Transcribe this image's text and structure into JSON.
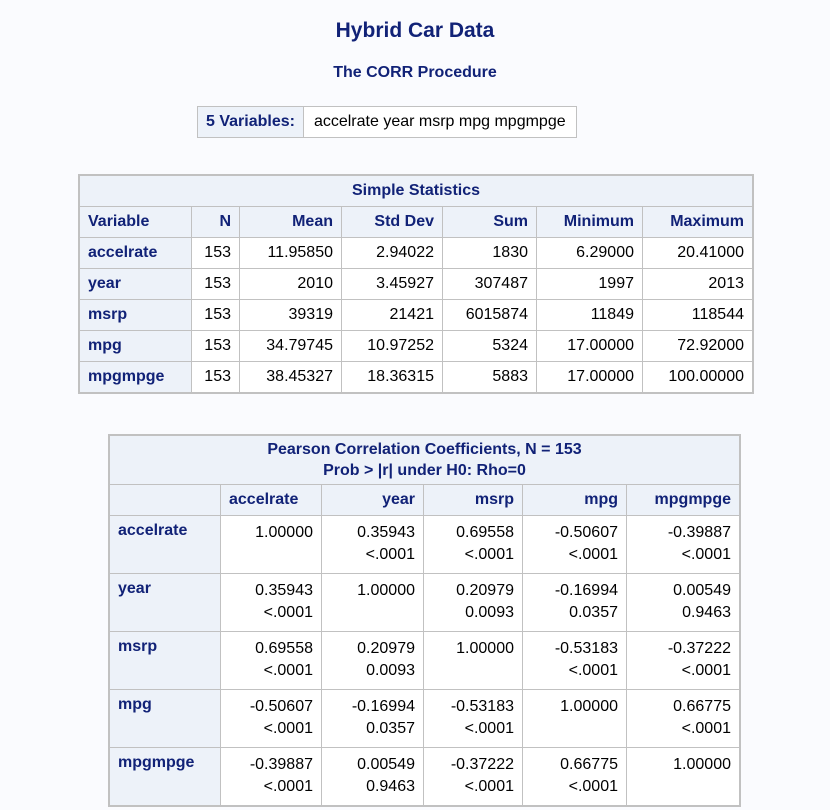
{
  "title": "Hybrid Car Data",
  "subtitle": "The CORR Procedure",
  "variables_box": {
    "label": "5 Variables:",
    "list": "accelrate year msrp mpg mpgmpge"
  },
  "simple_stats": {
    "caption": "Simple Statistics",
    "headers": [
      "Variable",
      "N",
      "Mean",
      "Std Dev",
      "Sum",
      "Minimum",
      "Maximum"
    ],
    "rows": [
      [
        "accelrate",
        "153",
        "11.95850",
        "2.94022",
        "1830",
        "6.29000",
        "20.41000"
      ],
      [
        "year",
        "153",
        "2010",
        "3.45927",
        "307487",
        "1997",
        "2013"
      ],
      [
        "msrp",
        "153",
        "39319",
        "21421",
        "6015874",
        "11849",
        "118544"
      ],
      [
        "mpg",
        "153",
        "34.79745",
        "10.97252",
        "5324",
        "17.00000",
        "72.92000"
      ],
      [
        "mpgmpge",
        "153",
        "38.45327",
        "18.36315",
        "5883",
        "17.00000",
        "100.00000"
      ]
    ]
  },
  "correlation": {
    "caption_line1": "Pearson Correlation Coefficients, N = 153",
    "caption_line2": "Prob > |r| under H0: Rho=0",
    "columns": [
      "accelrate",
      "year",
      "msrp",
      "mpg",
      "mpgmpge"
    ],
    "rows": [
      {
        "label": "accelrate",
        "cells": [
          {
            "r": "1.00000",
            "p": ""
          },
          {
            "r": "0.35943",
            "p": "<.0001"
          },
          {
            "r": "0.69558",
            "p": "<.0001"
          },
          {
            "r": "-0.50607",
            "p": "<.0001"
          },
          {
            "r": "-0.39887",
            "p": "<.0001"
          }
        ]
      },
      {
        "label": "year",
        "cells": [
          {
            "r": "0.35943",
            "p": "<.0001"
          },
          {
            "r": "1.00000",
            "p": ""
          },
          {
            "r": "0.20979",
            "p": "0.0093"
          },
          {
            "r": "-0.16994",
            "p": "0.0357"
          },
          {
            "r": "0.00549",
            "p": "0.9463"
          }
        ]
      },
      {
        "label": "msrp",
        "cells": [
          {
            "r": "0.69558",
            "p": "<.0001"
          },
          {
            "r": "0.20979",
            "p": "0.0093"
          },
          {
            "r": "1.00000",
            "p": ""
          },
          {
            "r": "-0.53183",
            "p": "<.0001"
          },
          {
            "r": "-0.37222",
            "p": "<.0001"
          }
        ]
      },
      {
        "label": "mpg",
        "cells": [
          {
            "r": "-0.50607",
            "p": "<.0001"
          },
          {
            "r": "-0.16994",
            "p": "0.0357"
          },
          {
            "r": "-0.53183",
            "p": "<.0001"
          },
          {
            "r": "1.00000",
            "p": ""
          },
          {
            "r": "0.66775",
            "p": "<.0001"
          }
        ]
      },
      {
        "label": "mpgmpge",
        "cells": [
          {
            "r": "-0.39887",
            "p": "<.0001"
          },
          {
            "r": "0.00549",
            "p": "0.9463"
          },
          {
            "r": "-0.37222",
            "p": "<.0001"
          },
          {
            "r": "0.66775",
            "p": "<.0001"
          },
          {
            "r": "1.00000",
            "p": ""
          }
        ]
      }
    ]
  },
  "colors": {
    "header_text": "#112277",
    "header_bg": "#edf2f9",
    "page_bg": "#fafbfe",
    "border": "#c1c1c1"
  }
}
